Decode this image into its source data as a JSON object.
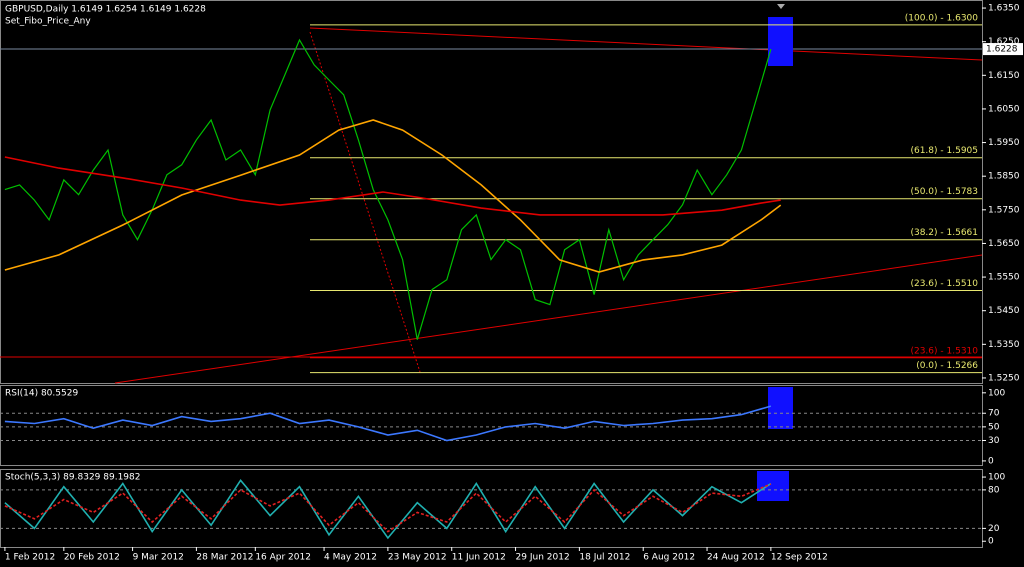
{
  "chart_data": [
    {
      "type": "line",
      "title": "GBPUSD,Daily  1.6149 1.6254 1.6149 1.6228",
      "subtitle": "Set_Fibo_Price_Any",
      "xlim": [
        -1,
        199
      ],
      "ylim": [
        1.5235,
        1.6368
      ],
      "yticks": [
        {
          "value": 1.635,
          "label": "1.6350"
        },
        {
          "value": 1.625,
          "label": "1.6250"
        },
        {
          "value": 1.615,
          "label": "1.6150"
        },
        {
          "value": 1.605,
          "label": "1.6050"
        },
        {
          "value": 1.595,
          "label": "1.5950"
        },
        {
          "value": 1.585,
          "label": "1.5850"
        },
        {
          "value": 1.575,
          "label": "1.5750"
        },
        {
          "value": 1.565,
          "label": "1.5650"
        },
        {
          "value": 1.555,
          "label": "1.5550"
        },
        {
          "value": 1.545,
          "label": "1.5450"
        },
        {
          "value": 1.535,
          "label": "1.5350"
        },
        {
          "value": 1.525,
          "label": "1.5250"
        }
      ],
      "last_price": 1.6228,
      "series": [
        {
          "color": "#00c000",
          "x": [
            0,
            3,
            6,
            9,
            12,
            15,
            18,
            21,
            24,
            27,
            30,
            33,
            36,
            39,
            42,
            45,
            48,
            51,
            54,
            57,
            60,
            63,
            66,
            69,
            72,
            75,
            78,
            81,
            84,
            87,
            90,
            93,
            96,
            99,
            102,
            105,
            108,
            111,
            114,
            117,
            120,
            123,
            126,
            129,
            132,
            135,
            138,
            141,
            144,
            147,
            150,
            153,
            156
          ],
          "values": [
            1.581,
            1.5824,
            1.5779,
            1.572,
            1.5839,
            1.5795,
            1.5868,
            1.5928,
            1.5735,
            1.5661,
            1.575,
            1.5854,
            1.5884,
            1.5958,
            1.6017,
            1.5898,
            1.5928,
            1.5854,
            1.6047,
            1.6151,
            1.6255,
            1.6181,
            1.6136,
            1.6092,
            1.5958,
            1.581,
            1.572,
            1.5602,
            1.5364,
            1.5513,
            1.5542,
            1.5691,
            1.5735,
            1.5602,
            1.5661,
            1.5631,
            1.5483,
            1.5468,
            1.5631,
            1.5661,
            1.5498,
            1.5691,
            1.5542,
            1.5616,
            1.5661,
            1.5706,
            1.5765,
            1.5868,
            1.5795,
            1.5854,
            1.5928,
            1.6077,
            1.6228
          ]
        },
        {
          "color": "#ffa500",
          "x": [
            0,
            11,
            24,
            36,
            48,
            60,
            68,
            75,
            81,
            89,
            97,
            105,
            113,
            121,
            130,
            138,
            146,
            154,
            158
          ],
          "values": [
            1.5571,
            1.5616,
            1.5705,
            1.5794,
            1.5853,
            1.5913,
            1.5987,
            1.6017,
            1.5987,
            1.5913,
            1.5824,
            1.572,
            1.5601,
            1.5565,
            1.5601,
            1.5616,
            1.5645,
            1.572,
            1.5764
          ]
        },
        {
          "color": "#e00000",
          "x": [
            0,
            11,
            24,
            36,
            48,
            56,
            66,
            77,
            85,
            97,
            109,
            121,
            134,
            146,
            154,
            158
          ],
          "values": [
            1.5907,
            1.5874,
            1.5845,
            1.5815,
            1.5779,
            1.5764,
            1.5779,
            1.5803,
            1.5785,
            1.5755,
            1.5735,
            1.5735,
            1.5735,
            1.5749,
            1.577,
            1.5779
          ]
        }
      ],
      "fibo_levels": [
        {
          "value": 1.63,
          "label": "(100.0) - 1.6300",
          "color": "#e8e870"
        },
        {
          "value": 1.5905,
          "label": "(61.8) - 1.5905",
          "color": "#e8e870"
        },
        {
          "value": 1.5783,
          "label": "(50.0) - 1.5783",
          "color": "#e8e870"
        },
        {
          "value": 1.5661,
          "label": "(38.2) - 1.5661",
          "color": "#e8e870"
        },
        {
          "value": 1.551,
          "label": "(23.6) - 1.5510",
          "color": "#e8e870"
        },
        {
          "value": 1.531,
          "label": "(23.6) - 1.5310",
          "color": "#e00000"
        },
        {
          "value": 1.5266,
          "label": "(0.0) - 1.5266",
          "color": "#e8e870"
        }
      ]
    },
    {
      "type": "line",
      "title": "RSI(14) 80.5529",
      "xlim": [
        -1,
        199
      ],
      "ylim": [
        -6,
        110
      ],
      "yticks": [
        100,
        70,
        50,
        30,
        0
      ],
      "levels": [
        70,
        50,
        30
      ],
      "series": [
        {
          "color": "#3c78ff",
          "x": [
            0,
            6,
            12,
            18,
            24,
            30,
            36,
            42,
            48,
            54,
            60,
            66,
            72,
            78,
            84,
            90,
            96,
            102,
            108,
            114,
            120,
            126,
            132,
            138,
            144,
            150,
            156
          ],
          "values": [
            58,
            55,
            62,
            48,
            60,
            52,
            65,
            58,
            62,
            70,
            55,
            60,
            50,
            38,
            45,
            30,
            38,
            50,
            55,
            48,
            58,
            52,
            55,
            60,
            62,
            68,
            80.5529
          ]
        }
      ]
    },
    {
      "type": "line",
      "title": "Stoch(5,3,3) 89.8329 89.1982",
      "xlim": [
        -1,
        199
      ],
      "ylim": [
        -9,
        111
      ],
      "yticks": [
        100,
        80,
        20,
        0
      ],
      "levels": [
        80,
        20
      ],
      "xticks": [
        {
          "value": 0,
          "label": "1 Feb 2012"
        },
        {
          "value": 12,
          "label": "20 Feb 2012"
        },
        {
          "value": 26,
          "label": "9 Mar 2012"
        },
        {
          "value": 39,
          "label": "28 Mar 2012"
        },
        {
          "value": 51,
          "label": "16 Apr 2012"
        },
        {
          "value": 65,
          "label": "4 May 2012"
        },
        {
          "value": 78,
          "label": "23 May 2012"
        },
        {
          "value": 91,
          "label": "11 Jun 2012"
        },
        {
          "value": 104,
          "label": "29 Jun 2012"
        },
        {
          "value": 117,
          "label": "18 Jul 2012"
        },
        {
          "value": 130,
          "label": "6 Aug 2012"
        },
        {
          "value": 143,
          "label": "24 Aug 2012"
        },
        {
          "value": 156,
          "label": "12 Sep 2012"
        }
      ],
      "series": [
        {
          "color": "#20b0b0",
          "x": [
            0,
            6,
            12,
            18,
            24,
            30,
            36,
            42,
            48,
            54,
            60,
            66,
            72,
            78,
            84,
            90,
            96,
            102,
            108,
            114,
            120,
            126,
            132,
            138,
            144,
            150,
            156
          ],
          "values": [
            60,
            20,
            85,
            30,
            90,
            15,
            80,
            25,
            95,
            40,
            85,
            10,
            70,
            5,
            60,
            20,
            90,
            15,
            85,
            20,
            90,
            30,
            80,
            40,
            85,
            60,
            89.8329
          ]
        },
        {
          "color": "#e02020",
          "dash": true,
          "x": [
            0,
            6,
            12,
            18,
            24,
            30,
            36,
            42,
            48,
            54,
            60,
            66,
            72,
            78,
            84,
            90,
            96,
            102,
            108,
            114,
            120,
            126,
            132,
            138,
            144,
            150,
            156
          ],
          "values": [
            55,
            35,
            65,
            45,
            75,
            30,
            70,
            35,
            80,
            55,
            75,
            25,
            60,
            15,
            45,
            30,
            75,
            30,
            70,
            30,
            80,
            40,
            70,
            45,
            75,
            70,
            89.1982
          ]
        }
      ]
    }
  ]
}
